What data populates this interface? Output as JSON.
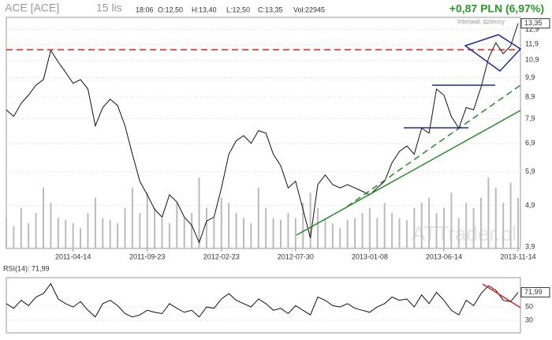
{
  "header": {
    "symbol": "ACE [ACE]",
    "date": "15 lis",
    "time": "18:06",
    "open": "O:12,50",
    "high": "H:13,40",
    "low": "L:12,50",
    "close": "C:13,35",
    "volume": "Vol:22945",
    "change": "+0,87 PLN (6,97%)",
    "interval": "Interwał: dzienny",
    "watermark": "ATTrader.pl"
  },
  "chart_data": [
    {
      "type": "line",
      "log_scale": true,
      "grid": true,
      "categories": [
        null,
        null,
        null,
        null,
        null,
        null,
        null,
        null,
        null,
        "2011-04-14",
        null,
        null,
        null,
        null,
        null,
        null,
        null,
        null,
        null,
        "2011-09-23",
        null,
        null,
        null,
        null,
        null,
        null,
        null,
        null,
        null,
        "2012-02-23",
        null,
        null,
        null,
        null,
        null,
        null,
        null,
        null,
        null,
        "2012-07-30",
        null,
        null,
        null,
        null,
        null,
        null,
        null,
        null,
        null,
        "2013-01-08",
        null,
        null,
        null,
        null,
        null,
        null,
        null,
        null,
        null,
        "2013-06-14",
        null,
        null,
        null,
        null,
        null,
        null,
        null,
        null,
        null,
        "2013-11-14"
      ],
      "series": [
        {
          "name": "ACE",
          "color": "#111111",
          "values": [
            8.3,
            8.0,
            8.6,
            9.0,
            9.5,
            9.8,
            11.5,
            10.8,
            10.2,
            9.6,
            9.8,
            9.3,
            7.6,
            8.4,
            8.8,
            8.5,
            7.6,
            6.5,
            5.6,
            5.2,
            4.8,
            4.6,
            5.2,
            5.0,
            4.6,
            4.4,
            4.0,
            4.5,
            4.6,
            5.4,
            6.5,
            7.0,
            7.2,
            6.9,
            7.4,
            7.3,
            6.5,
            6.1,
            5.4,
            5.6,
            4.8,
            4.1,
            5.5,
            5.8,
            5.5,
            5.4,
            5.5,
            5.4,
            5.3,
            5.2,
            5.4,
            5.6,
            6.2,
            6.6,
            6.8,
            6.5,
            7.5,
            7.3,
            9.3,
            9.0,
            8.0,
            7.5,
            8.4,
            8.3,
            9.4,
            11.0,
            12.0,
            11.3,
            11.8,
            13.35
          ],
          "last_label": "13,35"
        }
      ],
      "volume": [
        30,
        22,
        40,
        25,
        35,
        60,
        45,
        30,
        28,
        25,
        20,
        35,
        50,
        30,
        28,
        25,
        40,
        60,
        35,
        55,
        40,
        30,
        25,
        45,
        30,
        35,
        70,
        40,
        30,
        50,
        45,
        35,
        30,
        25,
        60,
        40,
        30,
        28,
        35,
        30,
        45,
        55,
        40,
        30,
        25,
        20,
        28,
        30,
        35,
        40,
        30,
        45,
        35,
        30,
        28,
        40,
        45,
        50,
        35,
        40,
        55,
        30,
        45,
        40,
        50,
        70,
        60,
        45,
        65,
        50
      ],
      "ylim": [
        3.87,
        13.8
      ],
      "yticks": [
        {
          "value": 3.9,
          "label": "3,9"
        },
        {
          "value": 4.9,
          "label": "4,9"
        },
        {
          "value": 5.9,
          "label": "5,9"
        },
        {
          "value": 6.9,
          "label": "6,9"
        },
        {
          "value": 7.9,
          "label": "7,9"
        },
        {
          "value": 8.9,
          "label": "8,9"
        },
        {
          "value": 9.9,
          "label": "9,9"
        },
        {
          "value": 10.9,
          "label": "10,9"
        },
        {
          "value": 11.9,
          "label": "11,9"
        },
        {
          "value": 12.9,
          "label": "12,9"
        }
      ]
    },
    {
      "type": "line",
      "title": "RSI(14): 71,99",
      "series": [
        {
          "name": "RSI(14)",
          "color": "#111111",
          "values": [
            55,
            48,
            60,
            52,
            65,
            70,
            85,
            62,
            55,
            50,
            58,
            45,
            35,
            55,
            60,
            52,
            40,
            35,
            38,
            45,
            42,
            40,
            55,
            48,
            42,
            45,
            35,
            50,
            48,
            62,
            70,
            60,
            55,
            50,
            62,
            55,
            45,
            48,
            40,
            52,
            45,
            38,
            65,
            60,
            52,
            50,
            55,
            48,
            45,
            42,
            50,
            55,
            65,
            60,
            62,
            50,
            68,
            55,
            72,
            60,
            45,
            38,
            60,
            52,
            70,
            82,
            75,
            60,
            58,
            71.99
          ],
          "last_label": "71,99"
        }
      ],
      "ylim": [
        11,
        94
      ],
      "yticks": [
        30,
        50
      ]
    }
  ]
}
